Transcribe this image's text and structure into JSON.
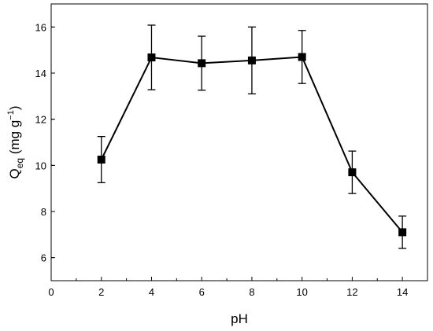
{
  "chart_data": {
    "type": "line",
    "title": "",
    "xlabel": "pH",
    "ylabel": {
      "main": "Q",
      "subscript": "eq",
      "units_prefix": " (mg g",
      "units_superscript": "−1",
      "units_suffix": ")"
    },
    "xlim": [
      0,
      15
    ],
    "ylim": [
      5,
      17
    ],
    "x_ticks": [
      0,
      2,
      4,
      6,
      8,
      10,
      12,
      14
    ],
    "y_ticks": [
      6,
      8,
      10,
      12,
      14,
      16
    ],
    "grid": false,
    "legend": "none",
    "series": [
      {
        "marker": "square",
        "color": "#000000",
        "x": [
          2,
          4,
          6,
          8,
          10,
          12,
          14
        ],
        "y": [
          10.25,
          14.68,
          14.43,
          14.55,
          14.7,
          9.7,
          7.1
        ],
        "error": [
          1.0,
          1.4,
          1.17,
          1.45,
          1.15,
          0.92,
          0.7
        ]
      }
    ]
  }
}
